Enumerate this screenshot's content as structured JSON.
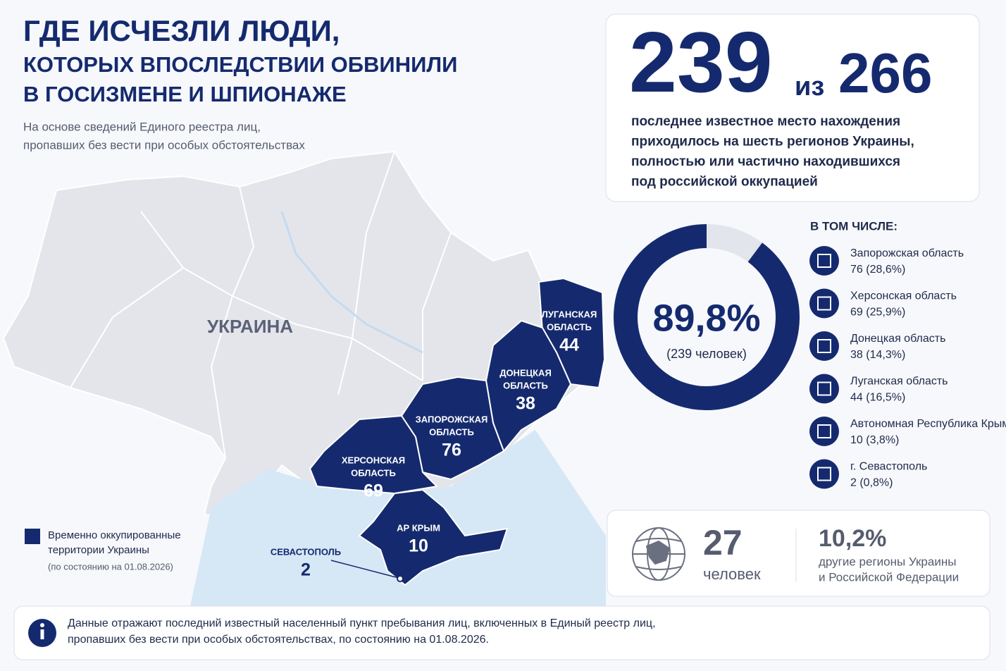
{
  "header": {
    "title_lines": [
      "ГДЕ ИСЧЕЗЛИ ЛЮДИ,",
      "КОТОРЫХ ВПОСЛЕДСТВИИ ОБВИНИЛИ",
      "В ГОСИЗМЕНЕ И ШПИОНАЖЕ"
    ],
    "subtitle_lines": [
      "На основе сведений Единого реестра лиц,",
      "пропавших без вести при особых обстоятельствах"
    ]
  },
  "headline": {
    "count": "239",
    "of": "из",
    "total": "266",
    "text_lines": [
      "последнее известное место нахождения",
      "приходилось на шесть регионов Украины,",
      "полностью или частично находившихся",
      "под российской оккупацией"
    ]
  },
  "chart_data": {
    "type": "donut",
    "values": [
      89.8,
      10.2
    ],
    "value_labels": [
      "89,8%",
      "10,2%"
    ],
    "colors": [
      "#152a6e",
      "#e3e5ec"
    ],
    "center_label": "(239 человек)"
  },
  "breakdown": {
    "title": "В ТОМ ЧИСЛЕ:",
    "items": [
      {
        "name": "Запорожская область",
        "stat": "76 (28,6%)"
      },
      {
        "name": "Херсонская область",
        "stat": "69 (25,9%)"
      },
      {
        "name": "Донецкая область",
        "stat": "38 (14,3%)"
      },
      {
        "name": "Луганская область",
        "stat": "44 (16,5%)"
      },
      {
        "name": "Автономная Республика Крым",
        "stat": "10 (3,8%)"
      },
      {
        "name": "г. Севастополь",
        "stat": "2 (0,8%)"
      }
    ]
  },
  "map": {
    "country": "УКРАИНА",
    "labels": [
      {
        "lines": [
          "ЛУГАНСКАЯ",
          "ОБЛАСТЬ"
        ],
        "value": 44
      },
      {
        "lines": [
          "ДОНЕЦКАЯ",
          "ОБЛАСТЬ"
        ],
        "value": 38
      },
      {
        "lines": [
          "ЗАПОРОЖСКАЯ",
          "ОБЛАСТЬ"
        ],
        "value": 76
      },
      {
        "lines": [
          "ХЕРСОНСКАЯ",
          "ОБЛАСТЬ"
        ],
        "value": 69
      },
      {
        "lines": [
          "АР КРЫМ"
        ],
        "value": 10
      },
      {
        "lines": [
          "СЕВАСТОПОЛЬ"
        ],
        "value": 2
      }
    ]
  },
  "legend": {
    "lines": [
      "Временно оккупированные",
      "территории Украины"
    ],
    "note": "(по состоянию на 01.08.2026)"
  },
  "others": {
    "count": "27",
    "unit": "человек",
    "text_lines": [
      "другие регионы Украины",
      "и Российской Федерации"
    ]
  },
  "footer": {
    "lines": [
      "Данные отражают последний известный населенный пункт пребывания лиц, включенных в Единый реестр лиц,",
      "пропавших без вести при особых обстоятельствах, по состоянию на 01.08.2026."
    ]
  }
}
